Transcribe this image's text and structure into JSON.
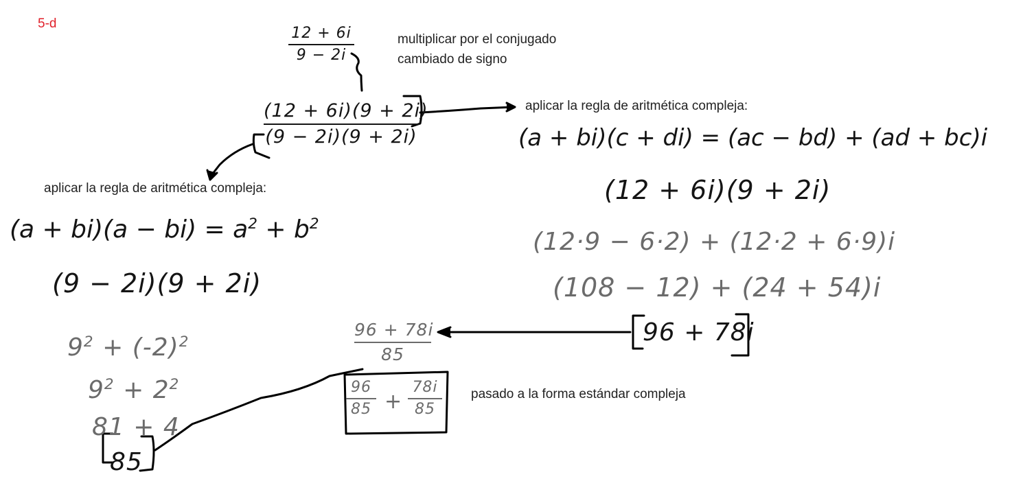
{
  "tag": "5-d",
  "start_fraction": {
    "numerator": "12 + 6i",
    "denominator": "9 − 2i"
  },
  "note_conjugate": [
    "multiplicar por el conjugado",
    "cambiado de signo"
  ],
  "product_fraction": {
    "numerator": "(12 + 6i)(9 + 2i)",
    "denominator": "(9 − 2i)(9 + 2i)"
  },
  "rule_label_right": "aplicar la regla de aritmética compleja:",
  "rule_right": "(a + bi)(c + di) = (ac − bd) + (ad + bc)i",
  "right_steps": [
    "(12 + 6i)(9 + 2i)",
    "(12·9 − 6·2) + (12·2 + 6·9)i",
    "(108 − 12) + (24 + 54)i",
    "96 + 78i"
  ],
  "rule_label_left": "aplicar la regla de aritmética compleja:",
  "rule_left": {
    "lhs": "(a + bi)(a − bi) = a",
    "sup1": "2",
    "mid": " + b",
    "sup2": "2"
  },
  "left_steps": {
    "s1": "(9 − 2i)(9 + 2i)",
    "s2": {
      "a": "9",
      "a_sup": "2",
      "b": " + (-2)",
      "b_sup": "2"
    },
    "s3": {
      "a": "9",
      "a_sup": "2",
      "b": " + 2",
      "b_sup": "2"
    },
    "s4": "81 + 4",
    "s5": "85"
  },
  "result_fraction": {
    "numerator": "96 + 78i",
    "denominator": "85"
  },
  "standard_form": {
    "re_num": "96",
    "re_den": "85",
    "plus": "+",
    "im_num": "78i",
    "im_den": "85"
  },
  "note_standard": "pasado a la forma estándar compleja"
}
